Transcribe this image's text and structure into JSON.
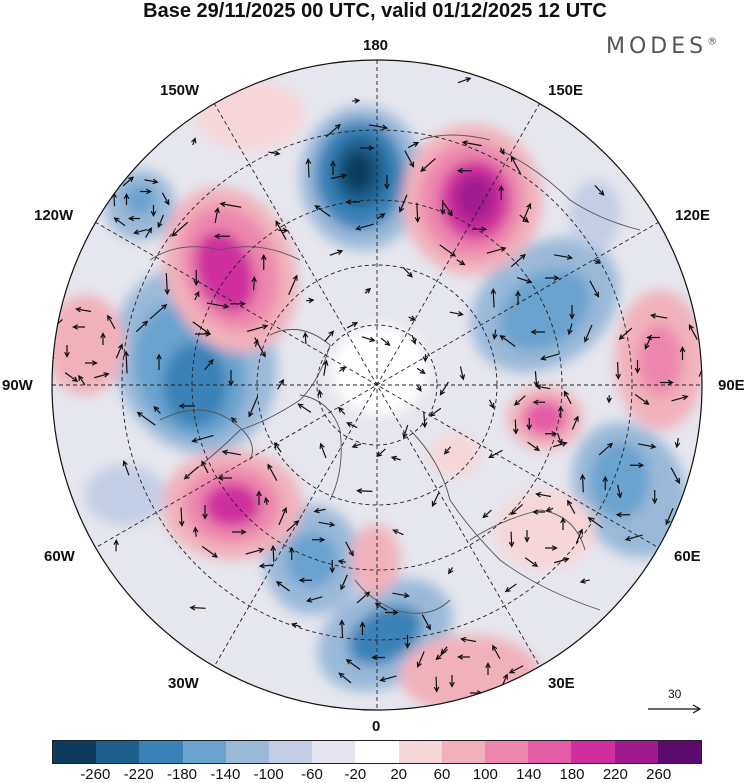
{
  "title": "Base 29/11/2025 00 UTC, valid 01/12/2025 12 UTC",
  "brand": "MODES",
  "brand_mark": "®",
  "map": {
    "projection": "north-polar-stereographic",
    "lon_labels": {
      "n180": "180",
      "w150": "150W",
      "e150": "150E",
      "w120": "120W",
      "e120": "120E",
      "w90": "90W",
      "e90": "90E",
      "w60": "60W",
      "e60": "60E",
      "w30": "30W",
      "e30": "30E",
      "s0": "0"
    },
    "reference_vector": "30"
  },
  "legend": {
    "colors": [
      "#0e3b5c",
      "#1e5f8e",
      "#3a82b8",
      "#6ba3cf",
      "#9ab9d9",
      "#c3cde4",
      "#e4e3f0",
      "#ffffff",
      "#f6d6d9",
      "#f1b1bb",
      "#ec86ad",
      "#e45ba6",
      "#cf2f9e",
      "#a21a8f",
      "#5c0b6e"
    ],
    "ticks": [
      "-260",
      "-220",
      "-180",
      "-140",
      "-100",
      "-60",
      "-20",
      "20",
      "60",
      "100",
      "140",
      "180",
      "220",
      "260"
    ]
  }
}
